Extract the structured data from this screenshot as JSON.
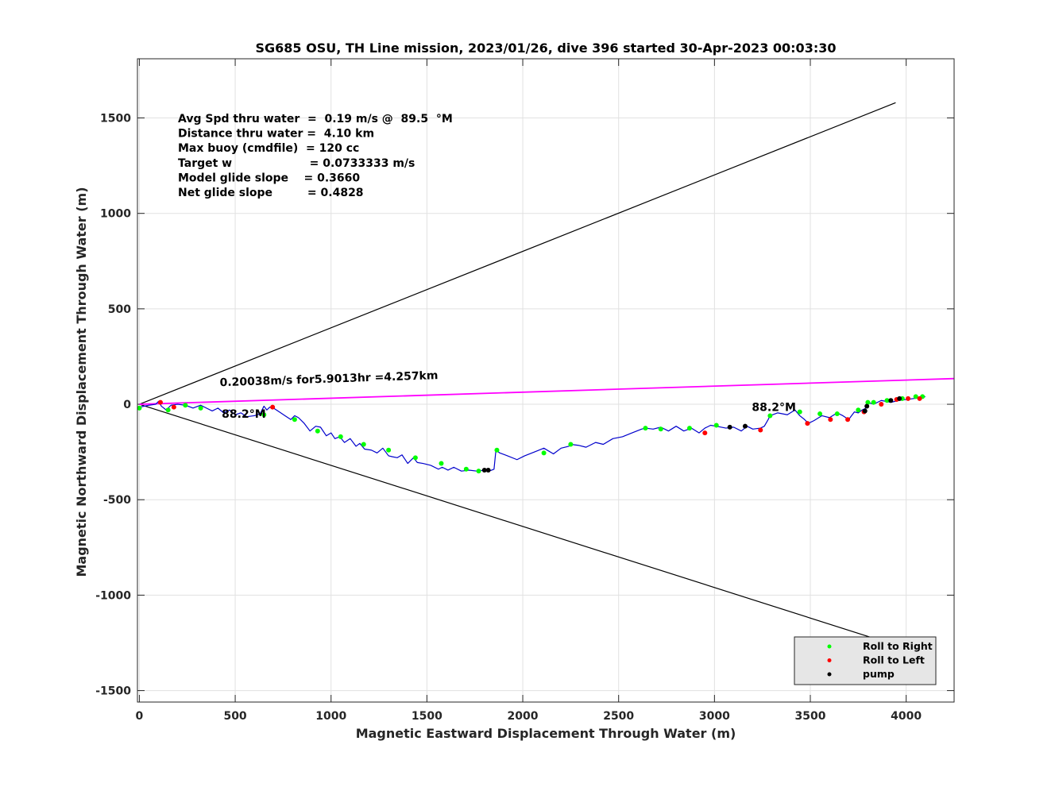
{
  "chart_data": {
    "type": "line",
    "title": "SG685 OSU, TH Line mission, 2023/01/26, dive 396 started 30-Apr-2023 00:03:30",
    "xlabel": "Magnetic Eastward Displacement Through Water (m)",
    "ylabel": "Magnetic Northward Displacement Through Water (m)",
    "xlim": [
      -10,
      4250
    ],
    "ylim": [
      -1560,
      1810
    ],
    "xticks": [
      0,
      500,
      1000,
      1500,
      2000,
      2500,
      3000,
      3500,
      4000
    ],
    "yticks": [
      -1500,
      -1000,
      -500,
      0,
      500,
      1000,
      1500
    ],
    "grid": true,
    "info_lines": [
      "Avg Spd thru water  =  0.19 m/s @  89.5  °M",
      "Distance thru water =  4.10 km",
      "Max buoy (cmdfile)  = 120 cc",
      "Target w                    = 0.0733333 m/s",
      "Model glide slope    = 0.3660",
      "Net glide slope         = 0.4828"
    ],
    "annotations": [
      {
        "text": "0.20038m/s for5.9013hr =4.257km",
        "x": 420,
        "y": 95
      },
      {
        "text": "88.2°M",
        "x": 430,
        "y": -70
      },
      {
        "text": "88.2°M",
        "x": 3195,
        "y": -35
      }
    ],
    "reference_lines": [
      {
        "name": "upper bound",
        "color": "#000000",
        "x": [
          0,
          3945
        ],
        "y": [
          0,
          1580
        ]
      },
      {
        "name": "lower bound",
        "color": "#000000",
        "x": [
          0,
          4000
        ],
        "y": [
          0,
          -1280
        ]
      },
      {
        "name": "net track",
        "color": "#ff00ff",
        "x": [
          0,
          4260
        ],
        "y": [
          0,
          135
        ]
      }
    ],
    "series": [
      {
        "color": "#0000cc",
        "x": [
          0,
          50,
          85,
          100,
          115,
          140,
          165,
          200,
          240,
          280,
          320,
          350,
          380,
          410,
          440,
          470,
          500,
          530,
          560,
          600,
          630,
          650,
          665,
          680,
          700,
          730,
          760,
          790,
          810,
          830,
          860,
          890,
          920,
          945,
          975,
          1000,
          1020,
          1045,
          1070,
          1100,
          1130,
          1150,
          1175,
          1210,
          1240,
          1270,
          1300,
          1320,
          1345,
          1370,
          1400,
          1430,
          1450,
          1480,
          1520,
          1560,
          1580,
          1610,
          1640,
          1680,
          1720,
          1760,
          1800,
          1830,
          1850,
          1860,
          1880,
          1920,
          1970,
          2010,
          2060,
          2110,
          2160,
          2200,
          2240,
          2250,
          2290,
          2330,
          2380,
          2420,
          2470,
          2520,
          2570,
          2620,
          2640,
          2680,
          2720,
          2760,
          2800,
          2840,
          2880,
          2920,
          2950,
          2980,
          3010,
          3060,
          3100,
          3140,
          3170,
          3200,
          3240,
          3260,
          3280,
          3290,
          3330,
          3380,
          3420,
          3445,
          3470,
          3490,
          3520,
          3560,
          3600,
          3640,
          3670,
          3700,
          3730,
          3750,
          3770,
          3790,
          3800,
          3830,
          3870,
          3920,
          3960,
          4000,
          4040,
          4080,
          4100
        ],
        "y": [
          -15,
          -5,
          0,
          15,
          -10,
          -30,
          -5,
          0,
          -5,
          -20,
          -5,
          -20,
          -35,
          -20,
          -45,
          -30,
          -55,
          -45,
          -65,
          -60,
          -50,
          -10,
          -30,
          -15,
          -20,
          -40,
          -60,
          -80,
          -60,
          -70,
          -100,
          -140,
          -115,
          -120,
          -165,
          -150,
          -180,
          -170,
          -200,
          -180,
          -220,
          -205,
          -235,
          -240,
          -255,
          -230,
          -270,
          -275,
          -280,
          -265,
          -310,
          -280,
          -305,
          -310,
          -320,
          -340,
          -330,
          -345,
          -330,
          -350,
          -345,
          -350,
          -345,
          -348,
          -340,
          -240,
          -255,
          -270,
          -290,
          -270,
          -250,
          -230,
          -260,
          -230,
          -220,
          -210,
          -215,
          -225,
          -200,
          -210,
          -180,
          -170,
          -150,
          -130,
          -125,
          -130,
          -120,
          -140,
          -115,
          -140,
          -125,
          -150,
          -125,
          -110,
          -115,
          -125,
          -120,
          -140,
          -115,
          -130,
          -125,
          -115,
          -80,
          -60,
          -45,
          -55,
          -30,
          -60,
          -80,
          -100,
          -85,
          -60,
          -70,
          -45,
          -60,
          -80,
          -40,
          -45,
          -30,
          -20,
          10,
          0,
          20,
          10,
          20,
          25,
          30,
          35,
          40
        ]
      }
    ],
    "markers": [
      {
        "name": "Roll to Right",
        "color": "#00ff00",
        "x": [
          0,
          150,
          240,
          320,
          650,
          810,
          930,
          1050,
          1170,
          1300,
          1440,
          1575,
          1705,
          1770,
          1865,
          2110,
          2250,
          2640,
          2720,
          2870,
          3010,
          3290,
          3445,
          3550,
          3640,
          3750,
          3800,
          3830,
          3900,
          3980,
          4050,
          4085
        ],
        "y": [
          -20,
          -30,
          -5,
          -20,
          -55,
          -80,
          -140,
          -170,
          -210,
          -240,
          -280,
          -310,
          -340,
          -350,
          -240,
          -255,
          -210,
          -125,
          -130,
          -125,
          -110,
          -60,
          -40,
          -50,
          -50,
          -30,
          10,
          10,
          20,
          30,
          40,
          40
        ]
      },
      {
        "name": "Roll to Left",
        "color": "#ff0000",
        "x": [
          110,
          180,
          695,
          2950,
          3240,
          3485,
          3605,
          3695,
          3780,
          3870,
          3950,
          4010,
          4070
        ],
        "y": [
          10,
          -15,
          -15,
          -150,
          -135,
          -100,
          -80,
          -80,
          -40,
          0,
          25,
          30,
          30
        ]
      },
      {
        "name": "pump",
        "color": "#000000",
        "x": [
          1800,
          1820,
          3080,
          3160,
          3785,
          3795,
          3920,
          3965
        ],
        "y": [
          -345,
          -345,
          -120,
          -115,
          -35,
          -10,
          20,
          30
        ]
      }
    ],
    "legend": {
      "placement": "bottom-right",
      "entries": [
        "Roll to Right",
        "Roll to Left",
        "pump"
      ]
    }
  }
}
